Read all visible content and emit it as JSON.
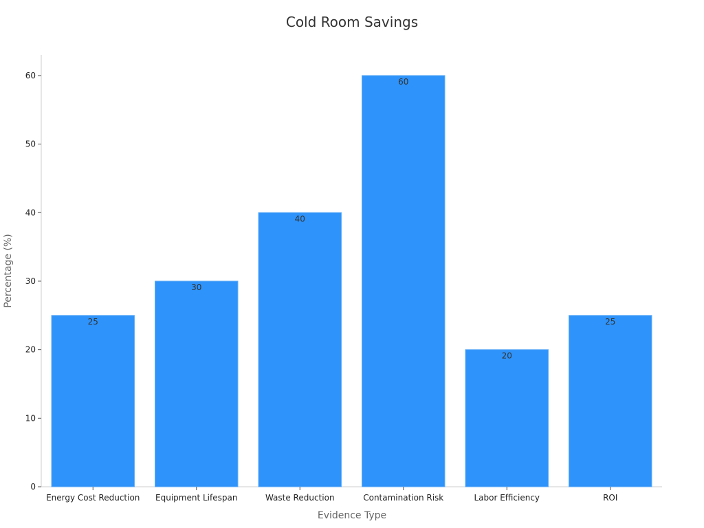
{
  "chart_data": {
    "type": "bar",
    "title": "Cold Room Savings",
    "xlabel": "Evidence Type",
    "ylabel": "Percentage (%)",
    "categories": [
      "Energy Cost Reduction",
      "Equipment Lifespan",
      "Waste Reduction",
      "Contamination Risk",
      "Labor Efficiency",
      "ROI"
    ],
    "values": [
      25,
      30,
      40,
      60,
      20,
      25
    ],
    "ylim": [
      0,
      63
    ],
    "yticks": [
      0,
      10,
      20,
      30,
      40,
      50,
      60
    ],
    "data_labels": [
      "25",
      "30",
      "40",
      "60",
      "20",
      "25"
    ],
    "grid": false,
    "legend": "none",
    "colors": {
      "bar": "#2E93FA",
      "bar_stroke": "#5aaaf7",
      "axis": "#cccccc",
      "tick_text": "#222222",
      "data_label": "#333333"
    }
  }
}
